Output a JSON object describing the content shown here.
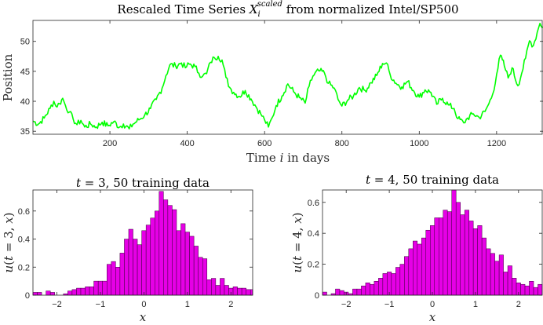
{
  "chart_data": [
    {
      "type": "line",
      "title": "Rescaled Time Series X_i^scaled from normalized Intel/SP500",
      "title_parts": {
        "pre": "Rescaled Time Series ",
        "var": "X",
        "sub": "i",
        "sup": "scaled",
        "post": " from normalized Intel/SP500"
      },
      "xlabel": "Time i in days",
      "xlabel_parts": {
        "pre": "Time ",
        "var": "i",
        "post": " in days"
      },
      "ylabel": "Position",
      "xlim": [
        1,
        1320
      ],
      "ylim": [
        34.5,
        53.5
      ],
      "xticks": [
        200,
        400,
        600,
        800,
        1000,
        1200
      ],
      "yticks": [
        35,
        40,
        45,
        50
      ],
      "grid": false,
      "color": "#00ff00",
      "series": [
        {
          "x": [
            1,
            15,
            30,
            45,
            55,
            60,
            70,
            78,
            85,
            95,
            105,
            115,
            125,
            135,
            150,
            165,
            180,
            195,
            210,
            225,
            235,
            250,
            260,
            275,
            290,
            305,
            320,
            335,
            345,
            355,
            370,
            385,
            395,
            405,
            420,
            430,
            440,
            450,
            460,
            470,
            480,
            490,
            500,
            510,
            520,
            535,
            550,
            565,
            575,
            590,
            600,
            610,
            620,
            630,
            645,
            660,
            675,
            690,
            705,
            715,
            725,
            740,
            755,
            765,
            780,
            790,
            800,
            815,
            830,
            845,
            860,
            875,
            890,
            905,
            915,
            925,
            940,
            955,
            970,
            985,
            1000,
            1015,
            1030,
            1045,
            1060,
            1075,
            1090,
            1100,
            1115,
            1125,
            1140,
            1155,
            1170,
            1180,
            1190,
            1200,
            1210,
            1215,
            1220,
            1230,
            1240,
            1255,
            1265,
            1275,
            1285,
            1295,
            1305,
            1312,
            1320
          ],
          "y": [
            36.7,
            36.2,
            37.2,
            38.8,
            40.0,
            39.2,
            39.6,
            40.5,
            39.3,
            38.2,
            37.0,
            36.1,
            36.8,
            35.7,
            36.2,
            35.7,
            36.5,
            35.9,
            36.6,
            35.7,
            36.2,
            35.4,
            36.2,
            36.9,
            37.7,
            38.8,
            40.3,
            42.2,
            44.3,
            46.1,
            45.9,
            46.4,
            45.6,
            46.2,
            45.8,
            44.7,
            44.2,
            44.6,
            46.5,
            47.3,
            47.5,
            46.9,
            44.0,
            42.3,
            41.5,
            40.8,
            41.8,
            40.4,
            39.4,
            37.9,
            36.9,
            35.7,
            37.3,
            39.3,
            40.9,
            42.9,
            41.6,
            40.6,
            39.7,
            42.5,
            44.2,
            45.1,
            44.7,
            43.0,
            42.2,
            40.3,
            39.2,
            40.2,
            40.9,
            42.3,
            41.8,
            43.1,
            44.3,
            46.3,
            46.4,
            44.4,
            43.0,
            42.4,
            43.3,
            41.8,
            40.7,
            41.9,
            41.5,
            39.5,
            40.5,
            39.4,
            38.8,
            37.1,
            36.4,
            37.2,
            37.9,
            37.3,
            38.3,
            39.6,
            41.2,
            44.5,
            47.7,
            46.9,
            45.9,
            43.9,
            45.6,
            42.6,
            44.7,
            47.2,
            50.1,
            49.3,
            51.5,
            53.0,
            52.4
          ]
        }
      ]
    },
    {
      "type": "bar",
      "title": "t = 3, 50 training data",
      "title_parts": {
        "var": "t",
        "rest": " = 3, 50 training data"
      },
      "xlabel": "x",
      "ylabel": "u(t = 3, x)",
      "ylabel_parts": {
        "fn": "u",
        "open": "(",
        "var1": "t",
        "mid": " = 3, ",
        "var2": "x",
        "close": ")"
      },
      "xlim": [
        -2.55,
        2.5
      ],
      "ylim": [
        0,
        0.75
      ],
      "xticks": [
        -2,
        -1,
        0,
        1,
        2
      ],
      "yticks": [
        0,
        0.2,
        0.4,
        0.6
      ],
      "bin_width": 0.1,
      "bin_start": -2.55,
      "color": "#e600e6",
      "values": [
        0.02,
        0.02,
        0.0,
        0.03,
        0.02,
        0.0,
        0.0,
        0.01,
        0.03,
        0.04,
        0.05,
        0.05,
        0.06,
        0.06,
        0.1,
        0.1,
        0.1,
        0.22,
        0.24,
        0.2,
        0.3,
        0.4,
        0.47,
        0.4,
        0.36,
        0.46,
        0.5,
        0.55,
        0.6,
        0.74,
        0.68,
        0.64,
        0.61,
        0.46,
        0.51,
        0.45,
        0.42,
        0.35,
        0.27,
        0.26,
        0.11,
        0.12,
        0.07,
        0.12,
        0.07,
        0.05,
        0.06,
        0.05,
        0.05,
        0.04,
        0.04,
        0.04,
        0.03,
        0.03,
        0.03,
        0.02,
        0.02,
        0.02,
        0.02,
        0.02
      ]
    },
    {
      "type": "bar",
      "title": "t = 4, 50 training data",
      "title_parts": {
        "var": "t",
        "rest": " = 4, 50 training data"
      },
      "xlabel": "x",
      "ylabel": "u(t = 4, x)",
      "ylabel_parts": {
        "fn": "u",
        "open": "(",
        "var1": "t",
        "mid": " = 4, ",
        "var2": "x",
        "close": ")"
      },
      "xlim": [
        -2.55,
        2.55
      ],
      "ylim": [
        0,
        0.68
      ],
      "xticks": [
        -2,
        -1,
        0,
        1,
        2
      ],
      "yticks": [
        0,
        0.2,
        0.4,
        0.6
      ],
      "bin_width": 0.1,
      "bin_start": -2.55,
      "color": "#e600e6",
      "values": [
        0.02,
        0.0,
        0.01,
        0.04,
        0.03,
        0.02,
        0.01,
        0.04,
        0.04,
        0.06,
        0.08,
        0.07,
        0.09,
        0.11,
        0.14,
        0.15,
        0.14,
        0.18,
        0.2,
        0.25,
        0.3,
        0.35,
        0.33,
        0.37,
        0.42,
        0.45,
        0.5,
        0.5,
        0.55,
        0.54,
        0.68,
        0.6,
        0.52,
        0.55,
        0.48,
        0.43,
        0.45,
        0.37,
        0.3,
        0.27,
        0.22,
        0.26,
        0.15,
        0.19,
        0.11,
        0.08,
        0.07,
        0.06,
        0.09,
        0.05,
        0.07,
        0.03,
        0.04,
        0.02,
        0.03,
        0.02,
        0.02,
        0.02,
        0.01,
        0.02
      ]
    }
  ]
}
